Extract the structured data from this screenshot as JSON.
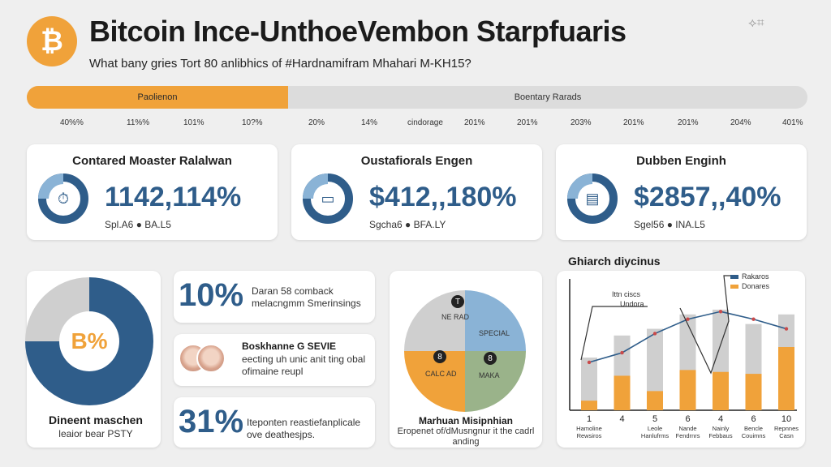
{
  "header": {
    "logo_glyph": "₿",
    "title": "Bitcoin Ince-UnthoeVembon Starpfuaris",
    "subtitle": "What bany gries Tort 80 anlibhics of #Hardnamifram Mhahari M-KH15?"
  },
  "tabs": [
    {
      "label": "Paolienon",
      "active": true
    },
    {
      "label": "Boentary Rarads",
      "active": false
    }
  ],
  "ticks": [
    "40%%",
    "11%%",
    "101%",
    "10?%",
    "20%",
    "14%",
    "cindorage",
    "201%",
    "201%",
    "203%",
    "201%",
    "201%",
    "204%",
    "401%"
  ],
  "stat_cards": [
    {
      "title": "Contared Moaster Ralalwan",
      "value": "1142,114%",
      "sub": "Spl.A6 ● BA.L5",
      "icon": "timer-icon",
      "icon_glyph": "⏱"
    },
    {
      "title": "Oustafiorals Engen",
      "value": "$412,,180%",
      "sub": "Sgcha6 ● BFA.LY",
      "icon": "card-icon",
      "icon_glyph": "▭"
    },
    {
      "title": "Dubben Enginh",
      "value": "$2857,,40%",
      "sub": "Sgel56 ● INA.L5",
      "icon": "document-icon",
      "icon_glyph": "▤"
    }
  ],
  "donut": {
    "center": "B%",
    "title": "Dineent maschen",
    "sub": "leaior bear PSTY",
    "share": 0.75
  },
  "mid_cards": [
    {
      "big": "10%",
      "text": "Daran 58 comback melacngmm Smerinsings"
    },
    {
      "title": "Boskhanne G SEVIE",
      "text": "eecting uh unic anit ting obal ofimaine reupl"
    },
    {
      "big": "31%",
      "text": "Iteponten reastiefanplicale ove deathesjps."
    }
  ],
  "pie": {
    "labels": [
      "NE RAD",
      "SPECIAL",
      "CALC AD",
      "MAKA"
    ],
    "badges": [
      "T",
      "8",
      "8"
    ],
    "title": "Marhuan Misipnhian",
    "sub": "Eropenet of/dMusngnur it the cadrl anding"
  },
  "chart_data": {
    "type": "bar",
    "title": "Ghiarch diycinus",
    "categories": [
      "1",
      "4",
      "5",
      "6",
      "4",
      "6",
      "10"
    ],
    "category_sub": [
      "Hamoline Rewsiros",
      "",
      "Leole Hanlufrms",
      "Nande Fendrnrs",
      "Nainly Febbaus",
      "Bencle Couimns",
      "Repnnes Casn"
    ],
    "series": [
      {
        "name": "Rakaros",
        "values": [
          10,
          36,
          20,
          42,
          40,
          38,
          66
        ],
        "color": "#f0a23a"
      },
      {
        "name": "Donares",
        "values": [
          55,
          78,
          85,
          100,
          105,
          90,
          100
        ],
        "color": "#cfcfcf"
      }
    ],
    "line": [
      50,
      60,
      80,
      95,
      103,
      95,
      85
    ],
    "line_color": "#2f5d8a",
    "annotations": [
      "Ittn ciscs",
      "Undora"
    ],
    "ylim": [
      0,
      110
    ]
  }
}
